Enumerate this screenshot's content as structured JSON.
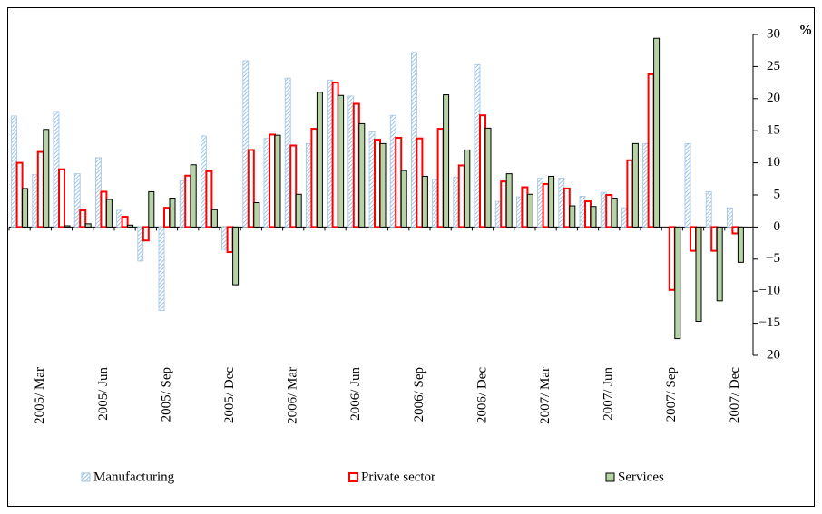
{
  "chart_data": {
    "type": "bar",
    "unit_label": "%",
    "categories": [
      null,
      "2005/ Mar",
      null,
      null,
      "2005/ Jun",
      null,
      null,
      "2005/ Sep",
      null,
      null,
      "2005/ Dec",
      null,
      null,
      "2006/ Mar",
      null,
      null,
      "2006/ Jun",
      null,
      null,
      "2006/ Sep",
      null,
      null,
      "2006/ Dec",
      null,
      null,
      "2007/ Mar",
      null,
      null,
      "2007/ Jun",
      null,
      null,
      "2007/ Sep",
      null,
      null,
      "2007/ Dec"
    ],
    "series": [
      {
        "name": "Manufacturing",
        "color": "#9dc3e6",
        "values": [
          17.3,
          8.2,
          18,
          8.3,
          10.8,
          2.6,
          -5.3,
          -13,
          7.2,
          14.2,
          -3.5,
          25.9,
          13.8,
          23.2,
          13,
          22.9,
          20.4,
          14.8,
          17.4,
          27.2,
          7.4,
          7.8,
          25.3,
          4,
          4.7,
          7.6,
          7.6,
          4.8,
          5.4,
          3,
          13,
          null,
          13,
          5.5,
          3
        ]
      },
      {
        "name": "Private sector",
        "color": "#ff0000",
        "values": [
          10,
          11.7,
          9,
          2.6,
          5.5,
          1.6,
          -2.1,
          3,
          8,
          8.7,
          -3.9,
          12,
          14.4,
          12.7,
          15.3,
          22.5,
          19.2,
          13.6,
          13.9,
          13.8,
          15.3,
          9.6,
          17.4,
          7.1,
          6.2,
          6.7,
          6,
          4,
          5,
          10.4,
          23.8,
          -9.8,
          -3.7,
          -3.7,
          -1
        ]
      },
      {
        "name": "Services",
        "color": "#b5d3a7",
        "values": [
          6,
          15.2,
          0.2,
          0.5,
          4.3,
          0.3,
          5.5,
          4.5,
          9.7,
          2.7,
          -9,
          3.8,
          14.3,
          5.1,
          21,
          20.5,
          16.1,
          13,
          8.8,
          7.9,
          20.6,
          12,
          15.4,
          8.3,
          5.1,
          7.9,
          3.3,
          3.2,
          4.5,
          13,
          29.4,
          -17.4,
          -14.7,
          -11.5,
          -5.5
        ]
      }
    ],
    "ylim": [
      -20,
      30
    ],
    "yticks": [
      {
        "value": -20,
        "label": "−20"
      },
      {
        "value": -15,
        "label": "−15"
      },
      {
        "value": -10,
        "label": "−10"
      },
      {
        "value": -5,
        "label": "−5"
      },
      0,
      5,
      10,
      15,
      20,
      25,
      30
    ],
    "legend": "bottom"
  }
}
